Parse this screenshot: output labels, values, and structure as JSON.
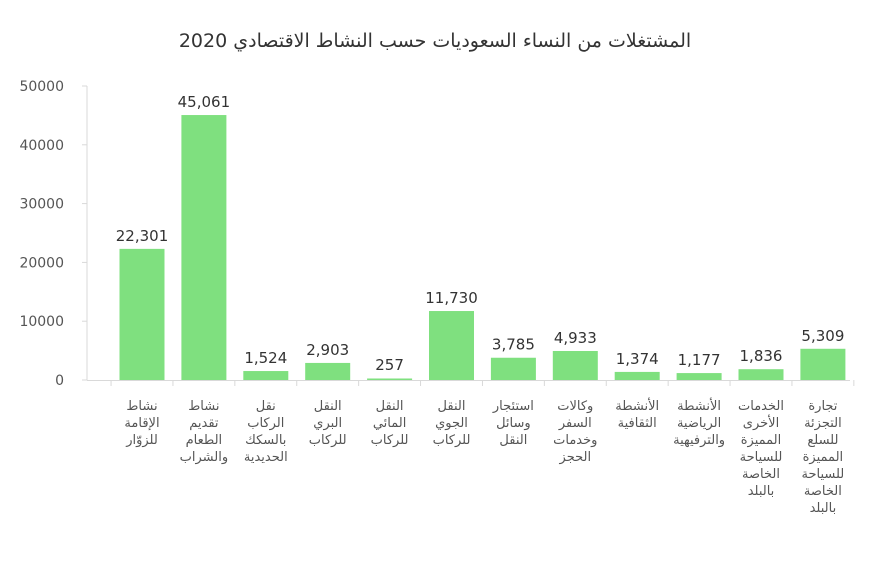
{
  "chart_data": {
    "type": "bar",
    "title": "المشتغلات من النساء السعوديات حسب النشاط الاقتصادي 2020",
    "xlabel": "",
    "ylabel": "",
    "ylim": [
      0,
      50000
    ],
    "yticks": [
      0,
      10000,
      20000,
      30000,
      40000,
      50000
    ],
    "grid": false,
    "bar_color": "#7fe07f",
    "categories": [
      "نشاط الإقامة للزوّار",
      "نشاط تقديم الطعام والشراب",
      "نقل الركاب بالسكك الحديدية",
      "النقل البري للركاب",
      "النقل المائي للركاب",
      "النقل الجوي للركاب",
      "استئجار وسائل النقل",
      "وكالات السفر وخدمات الحجز",
      "الأنشطة الثقافية",
      "الأنشطة الرياضية والترفيهية",
      "الخدمات الأخرى المميزة للسياحة الخاصة بالبلد",
      "تجارة التجزئة للسلع المميزة للسياحة الخاصة بالبلد"
    ],
    "values": [
      22301,
      45061,
      1524,
      2903,
      257,
      11730,
      3785,
      4933,
      1374,
      1177,
      1836,
      5309
    ],
    "data_labels": [
      "22,301",
      "45,061",
      "1,524",
      "2,903",
      "257",
      "11,730",
      "3,785",
      "4,933",
      "1,374",
      "1,177",
      "1,836",
      "5,309"
    ],
    "ytick_labels": [
      "0",
      "10000",
      "20000",
      "30000",
      "40000",
      "50000"
    ]
  }
}
